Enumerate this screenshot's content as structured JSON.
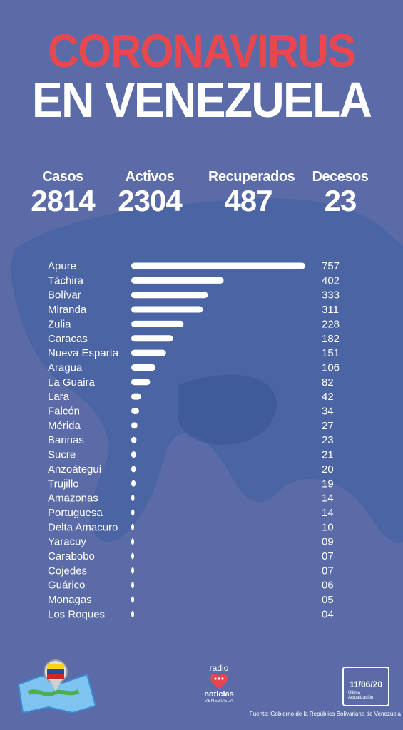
{
  "header": {
    "line1": "CORONAVIRUS",
    "line2": "EN VENEZUELA"
  },
  "stats": [
    {
      "label": "Casos",
      "value": "2814"
    },
    {
      "label": "Activos",
      "value": "2304"
    },
    {
      "label": "Recuperados",
      "value": "487"
    },
    {
      "label": "Decesos",
      "value": "23"
    }
  ],
  "chart_data": {
    "type": "bar",
    "orientation": "horizontal",
    "categories": [
      "Apure",
      "Táchira",
      "Bolívar",
      "Miranda",
      "Zulia",
      "Caracas",
      "Nueva Esparta",
      "Aragua",
      "La Guaira",
      "Lara",
      "Falcón",
      "Mérida",
      "Barinas",
      "Sucre",
      "Anzoátegui",
      "Trujillo",
      "Amazonas",
      "Portuguesa",
      "Delta Amacuro",
      "Yaracuy",
      "Carabobo",
      "Cojedes",
      "Guárico",
      "Monagas",
      "Los Roques"
    ],
    "values": [
      757,
      402,
      333,
      311,
      228,
      182,
      151,
      106,
      82,
      42,
      34,
      27,
      23,
      21,
      20,
      19,
      14,
      14,
      10,
      9,
      7,
      7,
      6,
      5,
      4
    ],
    "value_labels": [
      "757",
      "402",
      "333",
      "311",
      "228",
      "182",
      "151",
      "106",
      "82",
      "42",
      "34",
      "27",
      "23",
      "21",
      "20",
      "19",
      "14",
      "14",
      "10",
      "09",
      "07",
      "07",
      "06",
      "05",
      "04"
    ],
    "bar_color": "#ffffff",
    "grid": false
  },
  "footer": {
    "radio_top": "radio",
    "radio_bottom": "noticias",
    "radio_sub": "VENEZUELA",
    "date": "11/06/20",
    "update_note": "Última Actualización.",
    "source": "Fuente: Gobierno de la República Bolivariana de Venezuela"
  },
  "colors": {
    "background": "#5a6ba8",
    "map": "#3f5ea0",
    "title_red": "#e8474f"
  }
}
